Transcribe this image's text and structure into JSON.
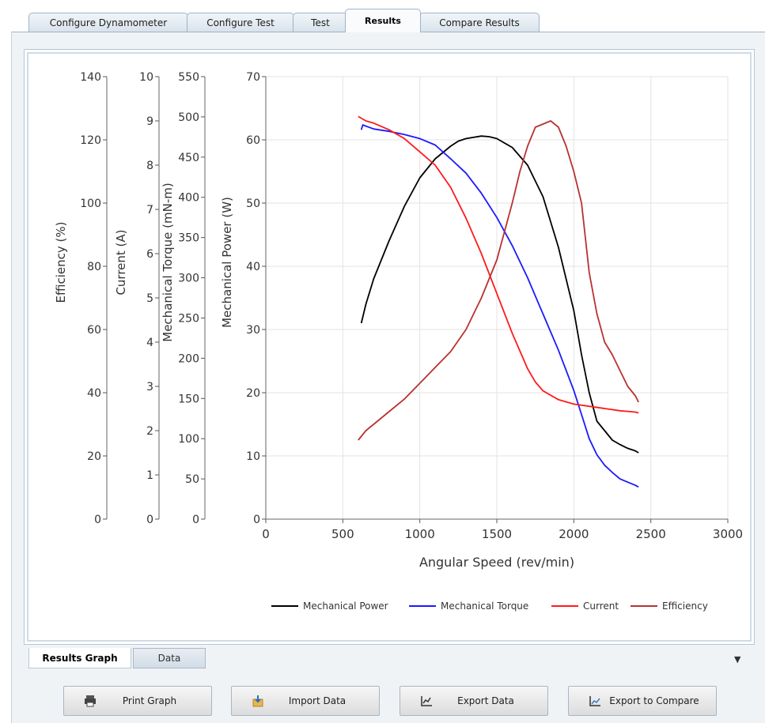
{
  "tabs": [
    {
      "label": "Configure Dynamometer"
    },
    {
      "label": "Configure Test"
    },
    {
      "label": "Test"
    },
    {
      "label": "Results"
    },
    {
      "label": "Compare Results"
    }
  ],
  "active_tab": "Results",
  "bottom_tabs": [
    {
      "label": "Results Graph"
    },
    {
      "label": "Data"
    }
  ],
  "buttons": {
    "print": "Print Graph",
    "import": "Import Data",
    "export": "Export Data",
    "compare": "Export to Compare"
  },
  "icons": {
    "print": "printer-icon",
    "import": "import-icon",
    "export": "chart-icon",
    "compare": "chart-line-icon",
    "menu": "dropdown-arrow-icon"
  },
  "chart_data": {
    "type": "line",
    "xlabel": "Angular Speed (rev/min)",
    "xlim": [
      0,
      3000
    ],
    "xticks": [
      "0",
      "500",
      "1000",
      "1500",
      "2000",
      "2500",
      "3000"
    ],
    "grid": true,
    "legend_position": "bottom",
    "axes": [
      {
        "label": "Mechanical Power (W)",
        "ylim": [
          0,
          70
        ],
        "ticks": [
          "0",
          "10",
          "20",
          "30",
          "40",
          "50",
          "60",
          "70"
        ]
      },
      {
        "label": "Mechanical Torque (mN-m)",
        "ylim": [
          0,
          550
        ],
        "ticks": [
          "0",
          "50",
          "100",
          "150",
          "200",
          "250",
          "300",
          "350",
          "400",
          "450",
          "500",
          "550"
        ]
      },
      {
        "label": "Current (A)",
        "ylim": [
          0,
          10
        ],
        "ticks": [
          "0",
          "1",
          "2",
          "3",
          "4",
          "5",
          "6",
          "7",
          "8",
          "9",
          "10"
        ]
      },
      {
        "label": "Efficiency (%)",
        "ylim": [
          0,
          140
        ],
        "ticks": [
          "0",
          "20",
          "40",
          "60",
          "80",
          "100",
          "120",
          "140"
        ]
      }
    ],
    "series": [
      {
        "name": "Mechanical Power",
        "color": "#000000",
        "axis": 0,
        "x": [
          620,
          650,
          700,
          800,
          900,
          1000,
          1100,
          1200,
          1250,
          1300,
          1400,
          1450,
          1500,
          1600,
          1700,
          1800,
          1900,
          2000,
          2050,
          2100,
          2150,
          2200,
          2250,
          2300,
          2350,
          2400,
          2420
        ],
        "y": [
          31,
          34,
          38,
          44,
          49.5,
          54,
          57,
          59,
          59.8,
          60.2,
          60.6,
          60.5,
          60.2,
          58.8,
          56,
          51,
          43,
          33,
          26,
          20,
          15.5,
          14,
          12.5,
          11.8,
          11.2,
          10.8,
          10.5
        ]
      },
      {
        "name": "Mechanical Torque",
        "color": "#1a1aff",
        "axis": 1,
        "x": [
          620,
          630,
          700,
          800,
          900,
          1000,
          1100,
          1200,
          1300,
          1400,
          1500,
          1600,
          1700,
          1800,
          1900,
          2000,
          2050,
          2100,
          2150,
          2200,
          2250,
          2300,
          2350,
          2400,
          2420
        ],
        "y": [
          484,
          490,
          485,
          482,
          478,
          473,
          465,
          448,
          430,
          405,
          375,
          340,
          300,
          255,
          210,
          160,
          130,
          100,
          80,
          67,
          58,
          50,
          46,
          42,
          40
        ]
      },
      {
        "name": "Current",
        "color": "#ff1a1a",
        "axis": 2,
        "x": [
          600,
          650,
          700,
          800,
          900,
          1000,
          1100,
          1200,
          1300,
          1400,
          1500,
          1600,
          1700,
          1750,
          1800,
          1900,
          2000,
          2100,
          2200,
          2300,
          2400,
          2420
        ],
        "y": [
          9.1,
          9.0,
          8.95,
          8.8,
          8.6,
          8.3,
          8.0,
          7.5,
          6.8,
          6.0,
          5.1,
          4.2,
          3.4,
          3.1,
          2.9,
          2.7,
          2.6,
          2.55,
          2.5,
          2.45,
          2.42,
          2.4
        ]
      },
      {
        "name": "Efficiency",
        "color": "#b83232",
        "axis": 3,
        "x": [
          600,
          650,
          700,
          800,
          900,
          1000,
          1100,
          1200,
          1300,
          1400,
          1500,
          1600,
          1650,
          1700,
          1750,
          1800,
          1850,
          1900,
          1950,
          2000,
          2050,
          2100,
          2150,
          2200,
          2250,
          2300,
          2350,
          2400,
          2420
        ],
        "y": [
          25,
          28,
          30,
          34,
          38,
          43,
          48,
          53,
          60,
          70,
          82,
          100,
          110,
          118,
          124,
          125,
          126,
          124,
          118,
          110,
          100,
          78,
          65,
          56,
          52,
          47,
          42,
          39,
          37
        ]
      }
    ]
  }
}
